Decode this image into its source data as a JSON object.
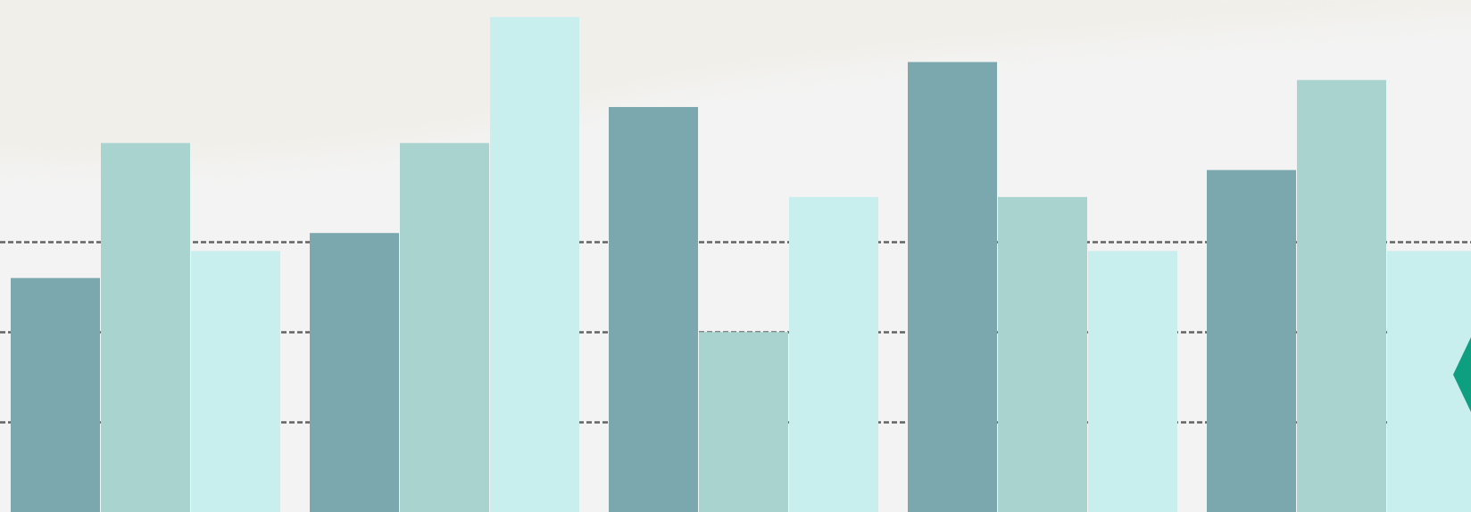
{
  "chart_data": {
    "type": "bar",
    "title": "",
    "xlabel": "",
    "ylabel": "",
    "categories": [
      "",
      "",
      "",
      "",
      ""
    ],
    "series": [
      {
        "values": [
          26,
          31,
          45,
          50,
          38
        ]
      },
      {
        "values": [
          41,
          41,
          20,
          35,
          48
        ]
      },
      {
        "values": [
          29,
          55,
          35,
          29,
          29
        ]
      }
    ],
    "ylim": [
      0,
      56
    ],
    "grid": true,
    "legend": "none",
    "colors": [
      "#7ba8af",
      "#a8d3cf",
      "#c8efee"
    ]
  },
  "colors": {
    "background": "#f3f3f3",
    "background_band": "#f1efe9",
    "gridline": "#4a4a4a",
    "marker": "#0e9e80"
  },
  "decorations": {
    "marker_icon": "teal-diamond-marker"
  }
}
